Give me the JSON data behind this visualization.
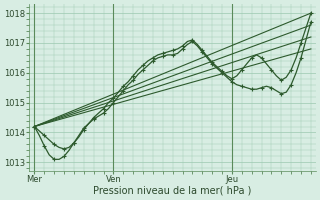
{
  "title": "Pression niveau de la mer( hPa )",
  "ylabel_ticks": [
    1013,
    1014,
    1015,
    1016,
    1017,
    1018
  ],
  "ylim": [
    1012.7,
    1018.3
  ],
  "bg_color": "#d8ede3",
  "grid_color": "#9dc9b0",
  "line_color": "#2d5a2d",
  "marker_color": "#2d5a2d",
  "xtick_labels": [
    "Mer",
    "Ven",
    "Jeu"
  ],
  "xtick_pos": [
    0,
    16,
    40
  ],
  "total_points": 57,
  "straight_lines": [
    [
      [
        0,
        1014.2
      ],
      [
        56,
        1018.0
      ]
    ],
    [
      [
        0,
        1014.2
      ],
      [
        56,
        1017.6
      ]
    ],
    [
      [
        0,
        1014.2
      ],
      [
        56,
        1017.2
      ]
    ],
    [
      [
        0,
        1014.2
      ],
      [
        56,
        1016.8
      ]
    ]
  ],
  "wavy_series": [
    [
      1014.2,
      1014.05,
      1013.9,
      1013.75,
      1013.6,
      1013.5,
      1013.45,
      1013.5,
      1013.65,
      1013.85,
      1014.1,
      1014.3,
      1014.5,
      1014.65,
      1014.8,
      1015.0,
      1015.15,
      1015.35,
      1015.55,
      1015.7,
      1015.9,
      1016.1,
      1016.25,
      1016.4,
      1016.5,
      1016.6,
      1016.65,
      1016.7,
      1016.75,
      1016.8,
      1016.9,
      1017.05,
      1017.1,
      1016.95,
      1016.75,
      1016.55,
      1016.35,
      1016.2,
      1016.05,
      1015.9,
      1015.8,
      1015.9,
      1016.1,
      1016.3,
      1016.5,
      1016.6,
      1016.5,
      1016.3,
      1016.1,
      1015.9,
      1015.75,
      1015.85,
      1016.1,
      1016.5,
      1017.0,
      1017.5,
      1018.0
    ],
    [
      1014.2,
      1013.9,
      1013.55,
      1013.25,
      1013.1,
      1013.1,
      1013.2,
      1013.4,
      1013.65,
      1013.9,
      1014.15,
      1014.3,
      1014.45,
      1014.55,
      1014.65,
      1014.8,
      1015.0,
      1015.2,
      1015.4,
      1015.6,
      1015.75,
      1015.95,
      1016.1,
      1016.25,
      1016.4,
      1016.5,
      1016.55,
      1016.6,
      1016.6,
      1016.65,
      1016.8,
      1016.95,
      1017.05,
      1016.9,
      1016.7,
      1016.5,
      1016.3,
      1016.15,
      1016.0,
      1015.85,
      1015.7,
      1015.6,
      1015.55,
      1015.5,
      1015.45,
      1015.45,
      1015.5,
      1015.55,
      1015.5,
      1015.4,
      1015.3,
      1015.35,
      1015.6,
      1016.0,
      1016.5,
      1017.1,
      1017.7
    ]
  ]
}
